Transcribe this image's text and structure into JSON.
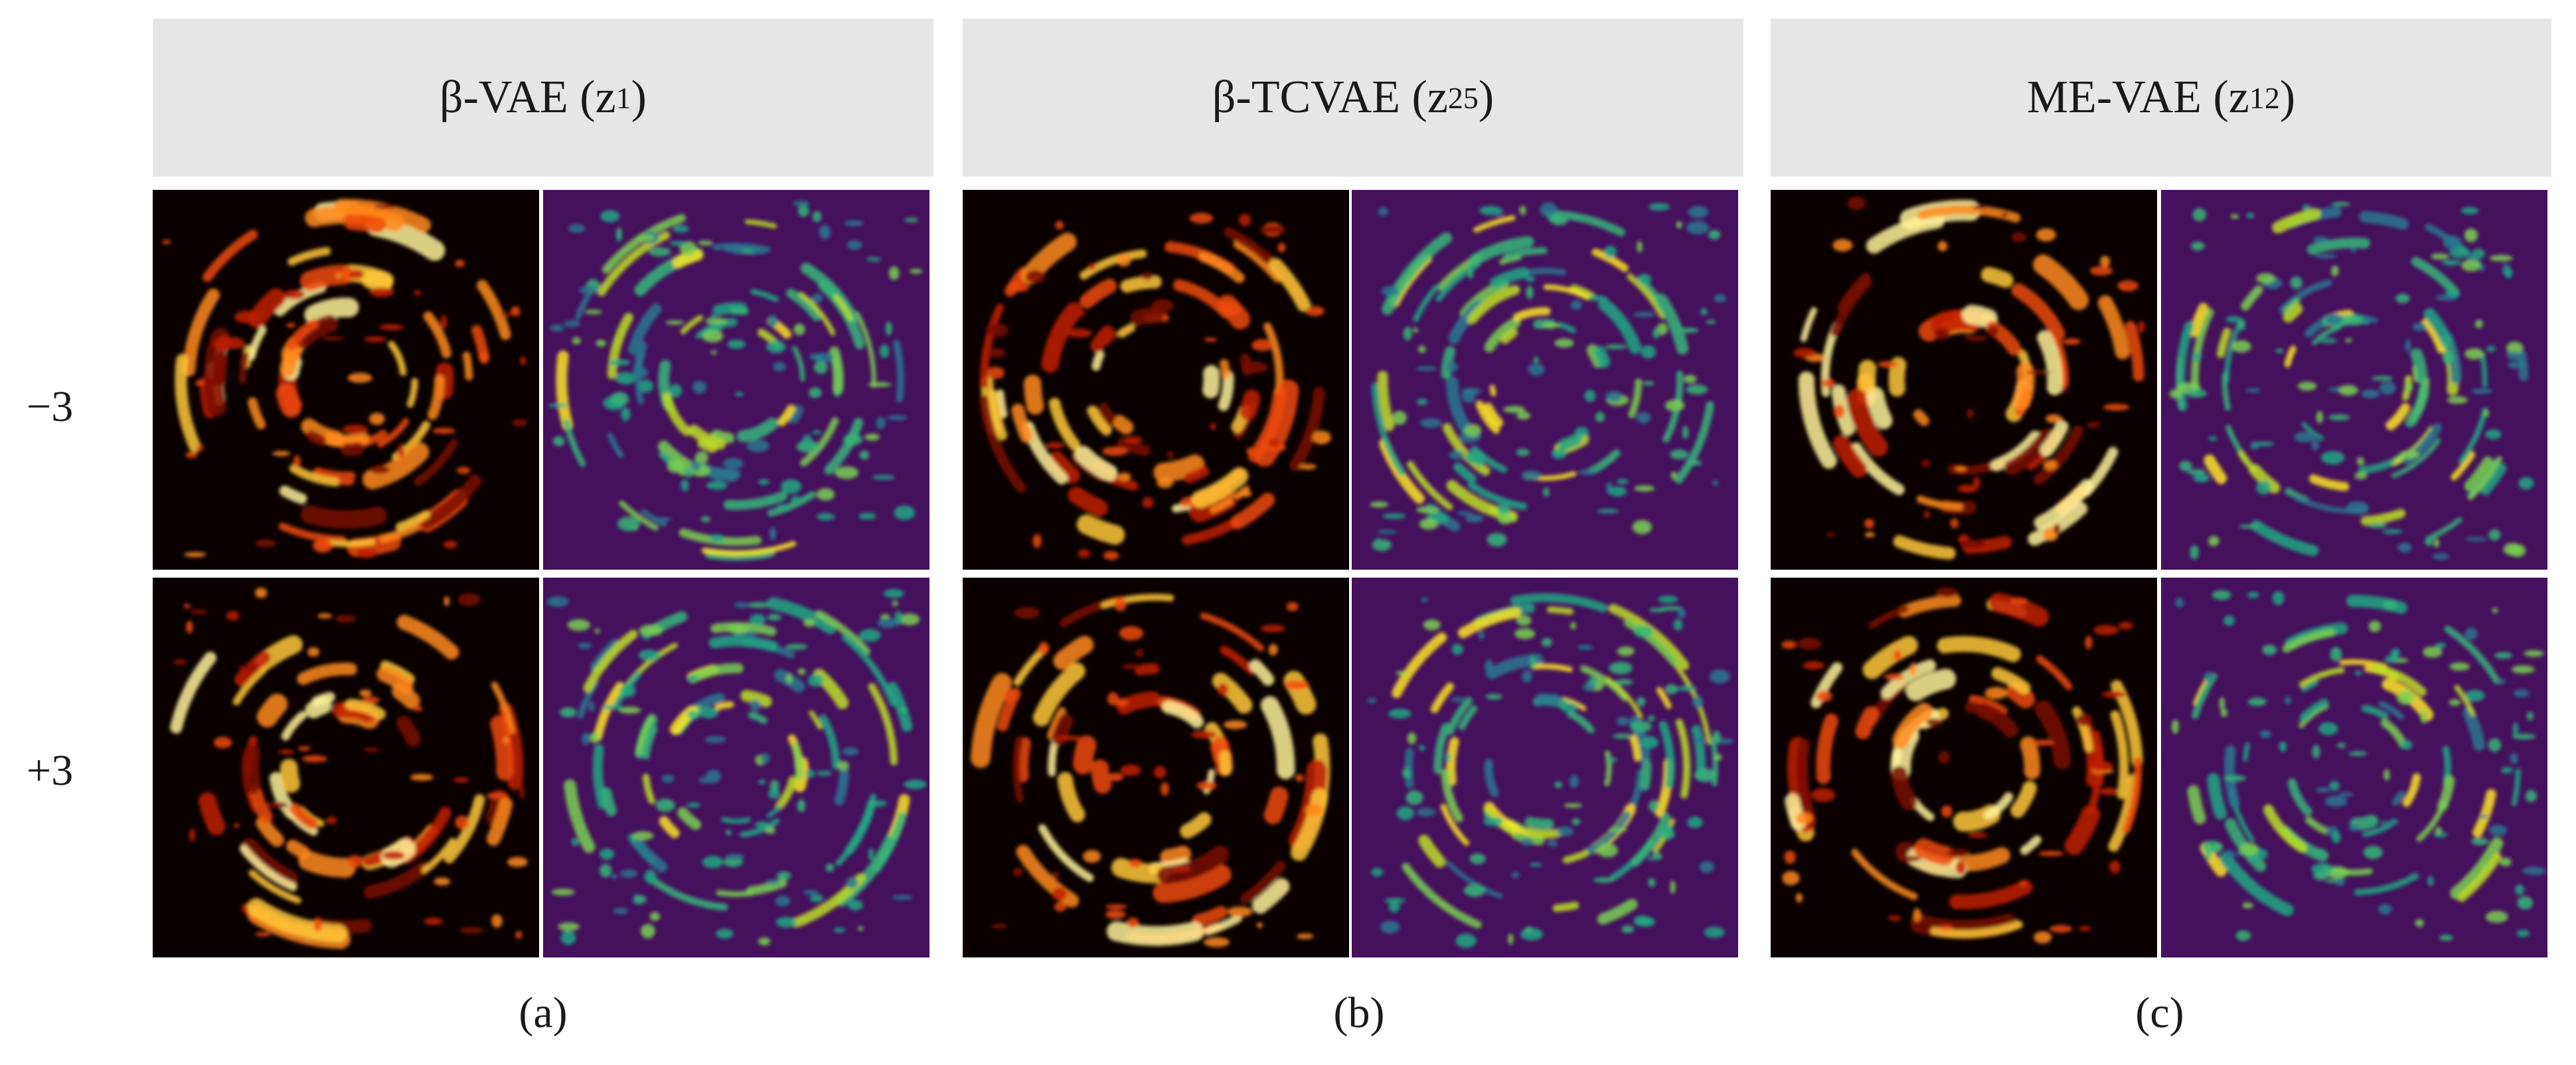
{
  "columns": [
    {
      "method": "β-VAE (z",
      "sub": "1",
      "close": ")",
      "caption": "(a)"
    },
    {
      "method": "β-TCVAE (z",
      "sub": "25",
      "close": ")",
      "caption": "(b)"
    },
    {
      "method": "ME-VAE (z",
      "sub": "12",
      "close": ")",
      "caption": "(c)"
    }
  ],
  "rows": [
    {
      "label": "−3"
    },
    {
      "label": "+3"
    }
  ],
  "colors": {
    "header_bg": "#e6e6e6",
    "heat_bg": "#0a0000",
    "viridis_bg": "#45105c"
  },
  "panel_types": [
    "heat-map",
    "viridis-map"
  ]
}
